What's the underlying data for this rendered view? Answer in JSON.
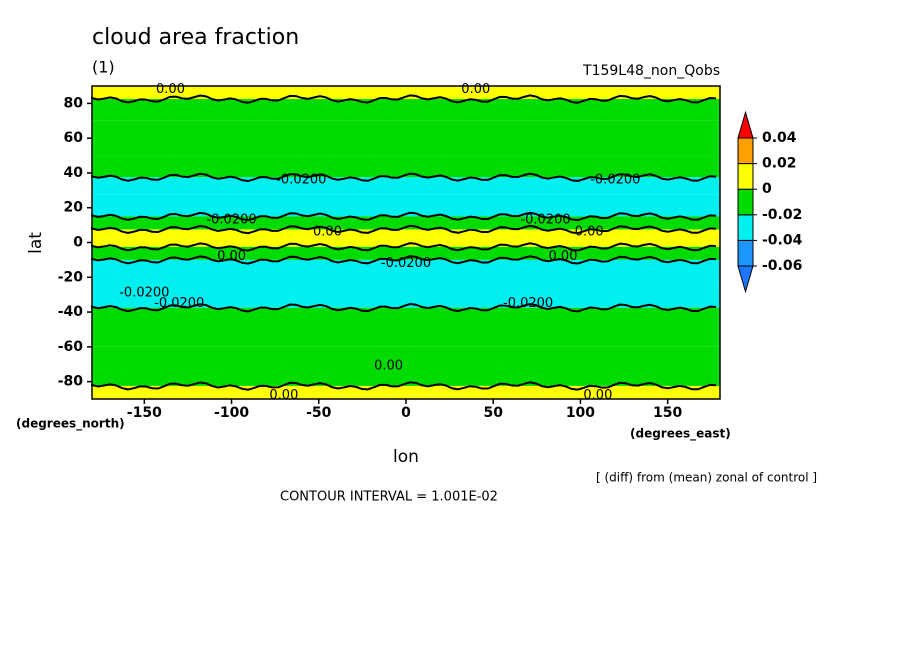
{
  "chart_data": {
    "type": "contourf",
    "title": "cloud area fraction",
    "subtitle": "(1)",
    "run_label": "T159L48_non_Qobs",
    "x_label": "lon",
    "y_label": "lat",
    "x_units": "(degrees_east)",
    "y_units": "(degrees_north)",
    "note": "[ (diff) from (mean) zonal of control ]",
    "contour_interval": "CONTOUR INTERVAL = 1.001E-02",
    "xlim": [
      -180,
      180
    ],
    "ylim": [
      -90,
      90
    ],
    "xticks": [
      -150,
      -100,
      -50,
      0,
      50,
      100,
      150
    ],
    "yticks": [
      -80,
      -60,
      -40,
      -20,
      0,
      20,
      40,
      60,
      80
    ],
    "colorbar": {
      "levels": [
        -0.06,
        -0.04,
        -0.02,
        0,
        0.02,
        0.04
      ],
      "colors": [
        "#1e78ff",
        "#1e96ff",
        "#00f0f0",
        "#00dc00",
        "#ffff00",
        "#ffa000",
        "#ff0000"
      ]
    },
    "zonal_profile": {
      "lat": [
        90,
        85,
        80,
        60,
        40,
        35,
        20,
        10,
        5,
        0,
        -5,
        -15,
        -35,
        -40,
        -80,
        -85,
        -90
      ],
      "values": [
        0.005,
        0.003,
        -0.005,
        -0.01,
        -0.01,
        -0.025,
        -0.025,
        -0.015,
        0.005,
        0.005,
        -0.01,
        -0.025,
        -0.025,
        -0.01,
        -0.01,
        0.005,
        0.005
      ]
    },
    "contour_labels": [
      {
        "text": "0.00",
        "lon": -135,
        "lat": 88
      },
      {
        "text": "0.00",
        "lon": 40,
        "lat": 88
      },
      {
        "text": "-0.0200",
        "lon": -60,
        "lat": 36
      },
      {
        "text": "-0.0200",
        "lon": 120,
        "lat": 36
      },
      {
        "text": "-0.0200",
        "lon": -100,
        "lat": 13
      },
      {
        "text": "-0.0200",
        "lon": 80,
        "lat": 13
      },
      {
        "text": "0.00",
        "lon": -45,
        "lat": 6
      },
      {
        "text": "0.00",
        "lon": 105,
        "lat": 6
      },
      {
        "text": "0.00",
        "lon": -100,
        "lat": -8
      },
      {
        "text": "0.00",
        "lon": 90,
        "lat": -8
      },
      {
        "text": "-0.0200",
        "lon": 0,
        "lat": -12
      },
      {
        "text": "-0.0200",
        "lon": -150,
        "lat": -29
      },
      {
        "text": "-0.0200",
        "lon": -130,
        "lat": -35
      },
      {
        "text": "-0.0200",
        "lon": 70,
        "lat": -35
      },
      {
        "text": "0.00",
        "lon": -10,
        "lat": -71
      },
      {
        "text": "0.00",
        "lon": -70,
        "lat": -88
      },
      {
        "text": "0.00",
        "lon": 110,
        "lat": -88
      }
    ]
  }
}
